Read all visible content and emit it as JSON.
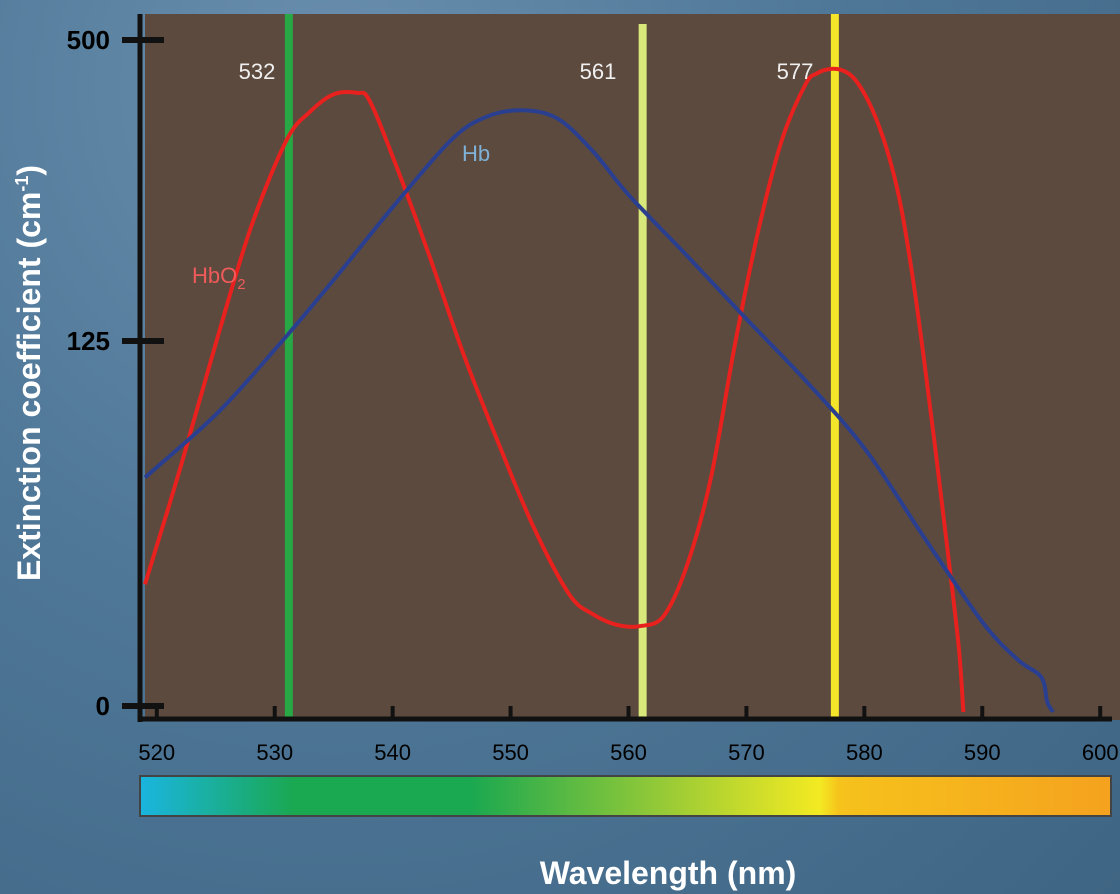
{
  "chart_data": {
    "type": "line",
    "title": "",
    "xlabel": "Wavelength (nm)",
    "ylabel": "Extinction coefficient (cm-1)",
    "ylabel_sup": "-1",
    "xlim": [
      519,
      601
    ],
    "x_ticks": [
      520,
      530,
      540,
      550,
      560,
      570,
      580,
      590,
      600
    ],
    "y_ticks": [
      "0",
      "125",
      "500"
    ],
    "grid": false,
    "series": [
      {
        "name": "HbO2",
        "label_main": "HbO",
        "label_sub": "2",
        "color": "#e8211e",
        "x": [
          519,
          522,
          525,
          528,
          531,
          533,
          535,
          537,
          538,
          540,
          543,
          546,
          549,
          552,
          555,
          557,
          559,
          561,
          563,
          565,
          567,
          569,
          571,
          573,
          575,
          576,
          577,
          578,
          579,
          580,
          581,
          582,
          583,
          584,
          585,
          586,
          587,
          588,
          588.4
        ],
        "y": [
          0.183,
          0.35,
          0.528,
          0.695,
          0.819,
          0.86,
          0.885,
          0.887,
          0.877,
          0.796,
          0.659,
          0.513,
          0.384,
          0.263,
          0.168,
          0.14,
          0.125,
          0.123,
          0.138,
          0.212,
          0.336,
          0.524,
          0.689,
          0.819,
          0.899,
          0.915,
          0.921,
          0.92,
          0.91,
          0.886,
          0.85,
          0.801,
          0.733,
          0.634,
          0.513,
          0.38,
          0.24,
          0.094,
          0.0
        ]
      },
      {
        "name": "Hb",
        "label_main": "Hb",
        "label_sub": "",
        "color": "#2a3f8f",
        "x": [
          519,
          525,
          530,
          535,
          540,
          545,
          548,
          551,
          554,
          557,
          560,
          565,
          570,
          575,
          580,
          585,
          590,
          593,
          595,
          595.5,
          596
        ],
        "y": [
          0.336,
          0.426,
          0.519,
          0.619,
          0.723,
          0.82,
          0.853,
          0.862,
          0.85,
          0.803,
          0.741,
          0.653,
          0.563,
          0.475,
          0.378,
          0.252,
          0.129,
          0.075,
          0.05,
          0.015,
          0.0
        ]
      }
    ],
    "vertical_lines": [
      {
        "x": 531.2,
        "label": "532",
        "color": "#28a745"
      },
      {
        "x": 561.2,
        "label": "561",
        "color": "#d8e87a"
      },
      {
        "x": 577.5,
        "label": "577",
        "color": "#f5e52a"
      }
    ],
    "colorbar_stops": [
      "#1ab5e0",
      "#1aa850",
      "#1aa850",
      "#9dcc35",
      "#f3ea22",
      "#f6c21c",
      "#f5a21e"
    ]
  }
}
